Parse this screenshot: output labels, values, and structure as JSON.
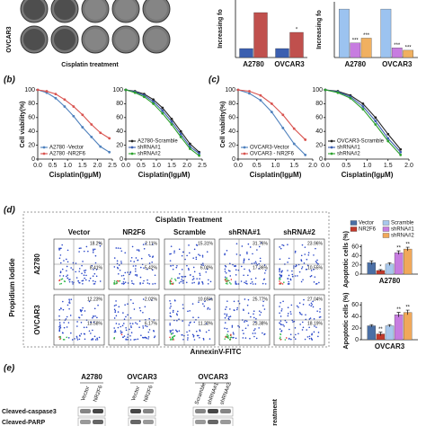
{
  "chart_data": [
    {
      "type": "bar",
      "ylabel": "Increasing fo",
      "categories": [
        "A2780",
        "OVCAR3"
      ],
      "ylim": [
        0,
        6.4
      ],
      "series": [
        {
          "color": "#3b5fb0",
          "values": [
            1,
            1
          ],
          "significance": [
            null,
            null
          ]
        },
        {
          "color": "#c0504d",
          "values": [
            5,
            2.8
          ],
          "significance": [
            null,
            "*"
          ]
        }
      ]
    },
    {
      "type": "bar",
      "ylabel": "Increasing fo",
      "categories": [
        "A2780",
        "OVCAR3"
      ],
      "ylim": [
        0,
        1.15
      ],
      "series": [
        {
          "color": "#9cc3f0",
          "values": [
            1,
            1
          ],
          "significance": [
            null,
            null
          ]
        },
        {
          "color": "#c77ce0",
          "values": [
            0.3,
            0.2
          ],
          "significance": [
            "***",
            "***"
          ]
        },
        {
          "color": "#f0b060",
          "values": [
            0.4,
            0.15
          ],
          "significance": [
            "***",
            "***"
          ]
        }
      ]
    },
    {
      "type": "line",
      "ylabel": "Cell viability(%)",
      "xlabel": "Cisplatin(lgμM)",
      "legend": "lower left",
      "xlim": [
        0,
        2.5
      ],
      "xticks": [
        {
          "value": 0,
          "label": "0.0"
        },
        0.5,
        {
          "value": 1,
          "label": "1.0"
        },
        1.5,
        {
          "value": 2,
          "label": "2.0"
        },
        2.5
      ],
      "ylim": [
        0,
        100
      ],
      "yticks": [
        0,
        20,
        40,
        60,
        80,
        100
      ],
      "x": [
        0,
        0.3,
        0.6,
        0.9,
        1.2,
        1.5,
        1.8,
        2.1,
        2.4
      ],
      "series": [
        {
          "name": "A2780 -Vector",
          "color": "#4f81bd",
          "values": [
            100,
            96,
            88,
            76,
            62,
            46,
            32,
            18,
            10
          ]
        },
        {
          "name": "A2780 -NR2F6",
          "color": "#d9534f",
          "values": [
            100,
            98,
            94,
            86,
            76,
            64,
            50,
            38,
            30
          ]
        }
      ]
    },
    {
      "type": "line",
      "xlabel": "Cisplatin(lgμM)",
      "legend": "lower left",
      "xlim": [
        0,
        2.5
      ],
      "xticks": [
        {
          "value": 0,
          "label": "0.0"
        },
        0.5,
        {
          "value": 1,
          "label": "1.0"
        },
        1.5,
        {
          "value": 2,
          "label": "2.0"
        },
        2.5
      ],
      "ylim": [
        0,
        100
      ],
      "yticks": [
        0,
        20,
        40,
        60,
        80,
        100
      ],
      "x": [
        0,
        0.3,
        0.6,
        0.9,
        1.2,
        1.5,
        1.8,
        2.1,
        2.4
      ],
      "series": [
        {
          "name": "A2780-Scramble",
          "color": "#222222",
          "values": [
            100,
            98,
            94,
            86,
            74,
            58,
            40,
            22,
            10
          ]
        },
        {
          "name": "shRNA#1",
          "color": "#3b5fb0",
          "values": [
            100,
            97,
            92,
            83,
            70,
            54,
            36,
            18,
            8
          ]
        },
        {
          "name": "shRNA#2",
          "color": "#2ca02c",
          "values": [
            100,
            96,
            90,
            80,
            66,
            50,
            32,
            15,
            5
          ]
        }
      ]
    },
    {
      "type": "line",
      "ylabel": "Cell viability(%)",
      "xlabel": "Cisplatin(lgμM)",
      "legend": "lower left",
      "xlim": [
        0,
        2
      ],
      "xticks": [
        {
          "value": 0,
          "label": "0.0"
        },
        0.5,
        {
          "value": 1,
          "label": "1.0"
        },
        1.5,
        {
          "value": 2,
          "label": "2.0"
        }
      ],
      "ylim": [
        0,
        100
      ],
      "yticks": [
        0,
        20,
        40,
        60,
        80,
        100
      ],
      "x": [
        0,
        0.3,
        0.6,
        0.9,
        1.2,
        1.5,
        1.8
      ],
      "series": [
        {
          "name": "OVCAR3-Vector",
          "color": "#4f81bd",
          "values": [
            100,
            95,
            85,
            68,
            45,
            22,
            6
          ]
        },
        {
          "name": "OVCAR3 - NR2F6",
          "color": "#d9534f",
          "values": [
            100,
            98,
            92,
            80,
            64,
            44,
            28
          ]
        }
      ]
    },
    {
      "type": "line",
      "xlabel": "Cisplatin(lgμM)",
      "legend": "lower left",
      "xlim": [
        0,
        2
      ],
      "xticks": [
        {
          "value": 0,
          "label": "0.0"
        },
        0.5,
        {
          "value": 1,
          "label": "1.0"
        },
        1.5,
        {
          "value": 2,
          "label": "2.0"
        }
      ],
      "ylim": [
        0,
        100
      ],
      "yticks": [
        0,
        20,
        40,
        60,
        80,
        100
      ],
      "x": [
        0,
        0.3,
        0.6,
        0.9,
        1.2,
        1.5,
        1.8
      ],
      "series": [
        {
          "name": "OVCAR3-Scramble",
          "color": "#222222",
          "values": [
            100,
            98,
            92,
            80,
            60,
            36,
            14
          ]
        },
        {
          "name": "shRNA#1",
          "color": "#3b5fb0",
          "values": [
            100,
            97,
            90,
            76,
            55,
            30,
            10
          ]
        },
        {
          "name": "shRNA#2",
          "color": "#2ca02c",
          "values": [
            100,
            96,
            88,
            72,
            50,
            26,
            6
          ]
        }
      ]
    },
    {
      "type": "bar",
      "ylabel": "Apoptotic cells (%)",
      "xlabel": "A2780",
      "legend": "top",
      "ylim": [
        0,
        65
      ],
      "yticks": [
        0,
        20,
        40,
        60
      ],
      "series": [
        {
          "name": "Vector",
          "color": "#4a6fa5",
          "values": [
            25
          ],
          "errors": [
            4
          ],
          "significance": [
            null
          ]
        },
        {
          "name": "NR2F6",
          "color": "#c0392b",
          "values": [
            8
          ],
          "errors": [
            2
          ],
          "significance": [
            "*"
          ]
        },
        {
          "name": "Scramble",
          "color": "#a8c8ec",
          "values": [
            22
          ],
          "errors": [
            3
          ],
          "significance": [
            null
          ]
        },
        {
          "name": "shRNA#1",
          "color": "#c77ce0",
          "values": [
            47
          ],
          "errors": [
            4
          ],
          "significance": [
            "**"
          ]
        },
        {
          "name": "shRNA#2",
          "color": "#f0a85a",
          "values": [
            55
          ],
          "errors": [
            4
          ],
          "significance": [
            "**"
          ]
        }
      ]
    },
    {
      "type": "bar",
      "ylabel": "Apoptotic cells (%)",
      "xlabel": "OVCAR3",
      "ylim": [
        0,
        65
      ],
      "yticks": [
        0,
        20,
        40,
        60
      ],
      "series": [
        {
          "color": "#4a6fa5",
          "values": [
            24
          ],
          "errors": [
            2
          ],
          "significance": [
            null
          ]
        },
        {
          "color": "#c0392b",
          "values": [
            10
          ],
          "errors": [
            3
          ],
          "significance": [
            "**"
          ]
        },
        {
          "color": "#a8c8ec",
          "values": [
            24
          ],
          "errors": [
            2
          ],
          "significance": [
            null
          ]
        },
        {
          "color": "#c77ce0",
          "values": [
            43
          ],
          "errors": [
            4
          ],
          "significance": [
            "**"
          ]
        },
        {
          "color": "#f0a85a",
          "values": [
            47
          ],
          "errors": [
            4
          ],
          "significance": [
            "**"
          ]
        }
      ]
    }
  ],
  "panels": {
    "b": "(b)",
    "c": "(c)",
    "d": "(d)",
    "e": "(e)"
  },
  "colony": {
    "row_label": "OVCAR3",
    "caption": "Cisplatin treatment"
  },
  "flow": {
    "title": "Cisplatin Treatment",
    "xlabel": "AnnexinV-FITC",
    "ylabel": "Propidium Iodide",
    "columns": [
      "Vector",
      "NR2F6",
      "Scramble",
      "shRNA#1",
      "shRNA#2"
    ],
    "rows": [
      {
        "label": "A2780",
        "gates": [
          [
            "18.2%",
            "8.41%"
          ],
          [
            "2.11%",
            "5.42%"
          ],
          [
            "15.31%",
            "6.00%"
          ],
          [
            "31.76%",
            "17.36%"
          ],
          [
            "23.96%",
            "10.55%"
          ]
        ]
      },
      {
        "label": "OVCAR3",
        "gates": [
          [
            "12.23%",
            "13.58%"
          ],
          [
            "2.02%",
            "6.17%"
          ],
          [
            "10.65%",
            "11.20%"
          ],
          [
            "25.77%",
            "23.38%"
          ],
          [
            "27.04%",
            "18.19%"
          ]
        ]
      }
    ]
  },
  "blot": {
    "groups": [
      {
        "label": "A2780",
        "lanes": [
          "Vector",
          "NR2F6"
        ]
      },
      {
        "label": "OVCAR3",
        "lanes": [
          "Vector",
          "NR2F6"
        ]
      },
      {
        "label": "OVCAR3",
        "lanes": [
          "Scramble",
          "shRNA#1",
          "shRNA#2"
        ]
      }
    ],
    "rows": [
      "Cleaved-caspase3",
      "Cleaved-PARP"
    ],
    "side": "treatment"
  }
}
